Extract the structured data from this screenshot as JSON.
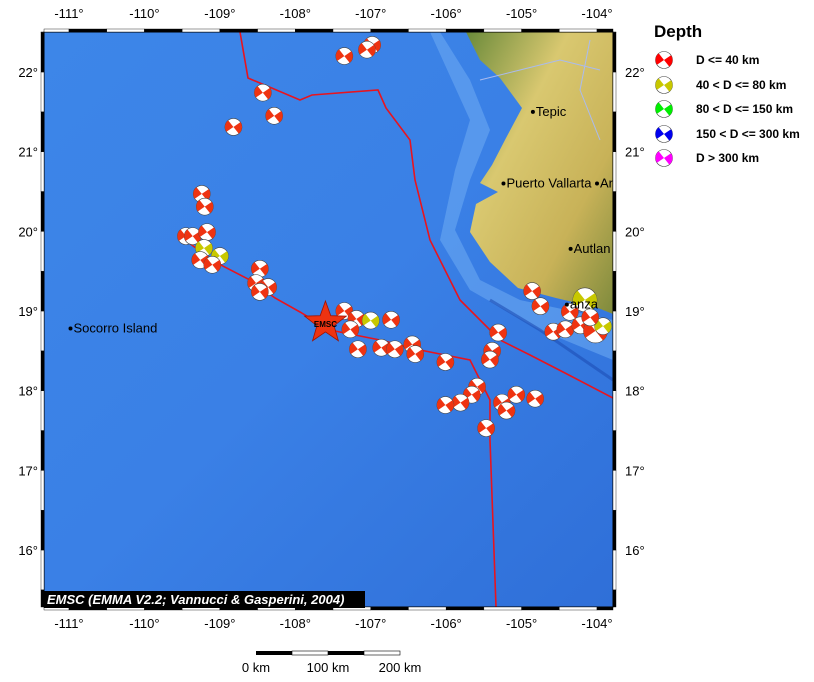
{
  "map": {
    "lon_range": [
      -111.33,
      -103.78
    ],
    "lat_range": [
      15.3,
      22.5
    ],
    "lon_ticks": [
      "-111°",
      "-110°",
      "-109°",
      "-108°",
      "-107°",
      "-106°",
      "-105°",
      "-104°"
    ],
    "lat_ticks": [
      "22°",
      "21°",
      "20°",
      "19°",
      "18°",
      "17°",
      "16°"
    ],
    "credit": "EMSC (EMMA V2.2; Vannucci & Gasperini, 2004)",
    "epicenter": {
      "label": "EMSC",
      "lon": -107.6,
      "lat": 18.85,
      "color": "#ee3311"
    },
    "places": [
      {
        "name": "Tepic",
        "lon": -104.85,
        "lat": 21.5
      },
      {
        "name": "Puerto Vallarta",
        "lon": -105.24,
        "lat": 20.6
      },
      {
        "name": "An",
        "lon": -104.0,
        "lat": 20.6
      },
      {
        "name": "Autlan",
        "lon": -104.35,
        "lat": 19.78
      },
      {
        "name": "anza",
        "lon": -104.4,
        "lat": 19.08
      },
      {
        "name": "Socorro Island",
        "lon": -110.98,
        "lat": 18.78
      }
    ],
    "events": [
      {
        "lon": -107.35,
        "lat": 22.2,
        "d": "shallow"
      },
      {
        "lon": -106.98,
        "lat": 22.34,
        "d": "shallow"
      },
      {
        "lon": -107.05,
        "lat": 22.28,
        "d": "shallow"
      },
      {
        "lon": -108.43,
        "lat": 21.74,
        "d": "shallow"
      },
      {
        "lon": -108.28,
        "lat": 21.45,
        "d": "shallow"
      },
      {
        "lon": -108.82,
        "lat": 21.31,
        "d": "shallow"
      },
      {
        "lon": -109.24,
        "lat": 20.47,
        "d": "shallow"
      },
      {
        "lon": -109.2,
        "lat": 20.31,
        "d": "shallow"
      },
      {
        "lon": -109.45,
        "lat": 19.94,
        "d": "shallow"
      },
      {
        "lon": -109.36,
        "lat": 19.94,
        "d": "shallow"
      },
      {
        "lon": -109.17,
        "lat": 19.99,
        "d": "shallow"
      },
      {
        "lon": -109.21,
        "lat": 19.79,
        "d": "intermediate"
      },
      {
        "lon": -109.0,
        "lat": 19.69,
        "d": "intermediate"
      },
      {
        "lon": -109.26,
        "lat": 19.64,
        "d": "shallow"
      },
      {
        "lon": -109.1,
        "lat": 19.58,
        "d": "shallow"
      },
      {
        "lon": -108.47,
        "lat": 19.53,
        "d": "shallow"
      },
      {
        "lon": -108.52,
        "lat": 19.35,
        "d": "shallow"
      },
      {
        "lon": -108.36,
        "lat": 19.3,
        "d": "shallow"
      },
      {
        "lon": -108.47,
        "lat": 19.24,
        "d": "shallow"
      },
      {
        "lon": -107.35,
        "lat": 19.0,
        "d": "shallow"
      },
      {
        "lon": -107.19,
        "lat": 18.9,
        "d": "shallow"
      },
      {
        "lon": -107.0,
        "lat": 18.88,
        "d": "intermediate"
      },
      {
        "lon": -106.73,
        "lat": 18.89,
        "d": "shallow"
      },
      {
        "lon": -107.27,
        "lat": 18.77,
        "d": "shallow"
      },
      {
        "lon": -107.17,
        "lat": 18.52,
        "d": "shallow"
      },
      {
        "lon": -106.86,
        "lat": 18.54,
        "d": "shallow"
      },
      {
        "lon": -106.68,
        "lat": 18.52,
        "d": "shallow"
      },
      {
        "lon": -106.45,
        "lat": 18.58,
        "d": "shallow"
      },
      {
        "lon": -106.41,
        "lat": 18.46,
        "d": "shallow"
      },
      {
        "lon": -106.01,
        "lat": 18.36,
        "d": "shallow"
      },
      {
        "lon": -105.31,
        "lat": 18.73,
        "d": "shallow"
      },
      {
        "lon": -105.39,
        "lat": 18.5,
        "d": "shallow"
      },
      {
        "lon": -105.42,
        "lat": 18.39,
        "d": "shallow"
      },
      {
        "lon": -105.59,
        "lat": 18.05,
        "d": "shallow"
      },
      {
        "lon": -105.66,
        "lat": 17.95,
        "d": "shallow"
      },
      {
        "lon": -105.81,
        "lat": 17.85,
        "d": "shallow"
      },
      {
        "lon": -106.01,
        "lat": 17.82,
        "d": "shallow"
      },
      {
        "lon": -105.26,
        "lat": 17.85,
        "d": "shallow"
      },
      {
        "lon": -105.07,
        "lat": 17.95,
        "d": "shallow"
      },
      {
        "lon": -105.2,
        "lat": 17.75,
        "d": "shallow"
      },
      {
        "lon": -104.82,
        "lat": 17.9,
        "d": "shallow"
      },
      {
        "lon": -105.47,
        "lat": 17.53,
        "d": "shallow"
      },
      {
        "lon": -104.86,
        "lat": 19.25,
        "d": "shallow"
      },
      {
        "lon": -104.75,
        "lat": 19.06,
        "d": "shallow"
      },
      {
        "lon": -104.16,
        "lat": 19.14,
        "d": "intermediate",
        "big": true
      },
      {
        "lon": -104.36,
        "lat": 18.99,
        "d": "shallow"
      },
      {
        "lon": -104.58,
        "lat": 18.74,
        "d": "shallow"
      },
      {
        "lon": -104.42,
        "lat": 18.77,
        "d": "shallow"
      },
      {
        "lon": -104.22,
        "lat": 18.82,
        "d": "shallow"
      },
      {
        "lon": -104.02,
        "lat": 18.75,
        "d": "shallow",
        "big": true
      },
      {
        "lon": -103.92,
        "lat": 18.81,
        "d": "intermediate"
      },
      {
        "lon": -104.09,
        "lat": 18.92,
        "d": "shallow"
      }
    ]
  },
  "scale": {
    "labels": [
      "0 km",
      "100 km",
      "200 km"
    ]
  },
  "legend": {
    "title": "Depth",
    "items": [
      {
        "label": "D <= 40 km",
        "color": "#ff0000",
        "key": "shallow"
      },
      {
        "label": "40 < D <= 80 km",
        "color": "#c8c800",
        "key": "intermediate"
      },
      {
        "label": "80 < D <= 150 km",
        "color": "#00ee00",
        "key": "mid"
      },
      {
        "label": "150 < D <= 300 km",
        "color": "#0000ee",
        "key": "deep"
      },
      {
        "label": "D > 300 km",
        "color": "#ff00ff",
        "key": "verydeep"
      }
    ]
  }
}
